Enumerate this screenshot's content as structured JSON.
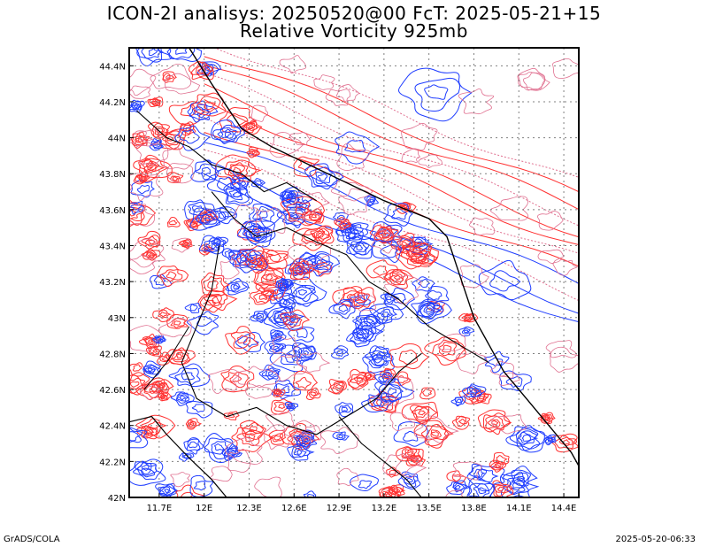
{
  "header": {
    "title_line1": "ICON-2I analisys: 20250520@00 FcT: 2025-05-21+15",
    "title_line2": "Relative Vorticity 925mb"
  },
  "map": {
    "lon_range": [
      11.5,
      14.5
    ],
    "lat_range": [
      42.0,
      44.5
    ],
    "lon_ticks": [
      "11.7E",
      "12E",
      "12.3E",
      "12.6E",
      "12.9E",
      "13.2E",
      "13.5E",
      "13.8E",
      "14.1E",
      "14.4E"
    ],
    "lon_tick_values": [
      11.7,
      12.0,
      12.3,
      12.6,
      12.9,
      13.2,
      13.5,
      13.8,
      14.1,
      14.4
    ],
    "lat_ticks": [
      "42N",
      "42.2N",
      "42.4N",
      "42.6N",
      "42.8N",
      "43N",
      "43.2N",
      "43.4N",
      "43.6N",
      "43.8N",
      "44N",
      "44.2N",
      "44.4N"
    ],
    "lat_tick_values": [
      42.0,
      42.2,
      42.4,
      42.6,
      42.8,
      43.0,
      43.2,
      43.4,
      43.6,
      43.8,
      44.0,
      44.2,
      44.4
    ],
    "grid": "dotted",
    "colors": {
      "positive": "#ff3030",
      "negative": "#1e3cff",
      "zero": "#e07090",
      "coast": "#000000",
      "border": "#000000"
    }
  },
  "footer": {
    "left": "GrADS/COLA",
    "right": "2025-05-20-06:33"
  }
}
